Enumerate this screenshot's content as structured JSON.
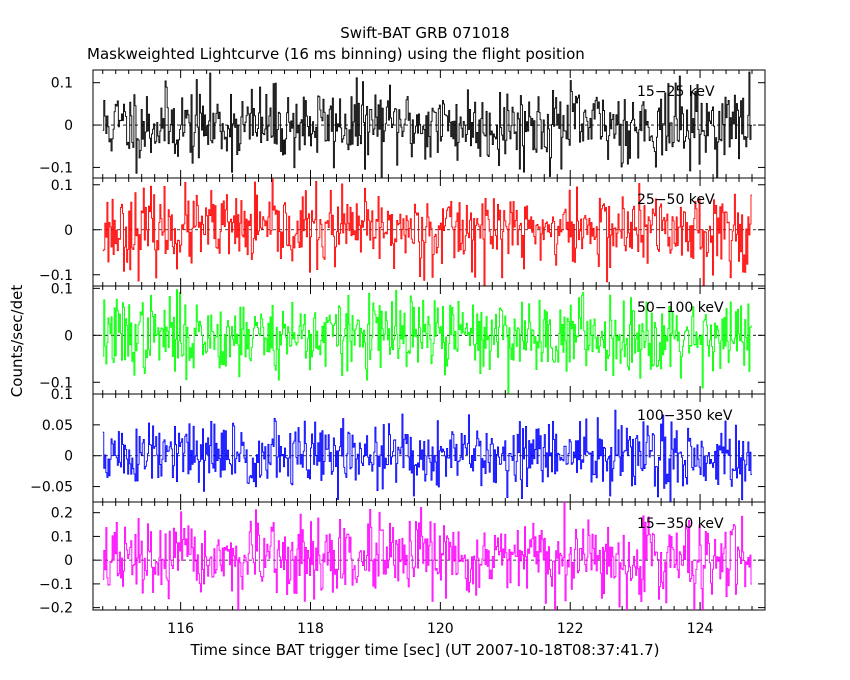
{
  "chart_data": {
    "type": "line",
    "title": "Swift-BAT GRB 071018",
    "subtitle": "Maskweighted Lightcurve (16 ms binning) using the flight position",
    "xlabel": "Time since BAT trigger time [sec] (UT 2007-10-18T08:37:41.7)",
    "ylabel": "Counts/sec/det",
    "xlim": [
      114.65,
      125.0
    ],
    "data_x_range": [
      114.8,
      124.8
    ],
    "bin_width_sec": 0.016,
    "xticks": [
      116,
      118,
      120,
      122,
      124
    ],
    "xtick_labels": [
      "116",
      "118",
      "120",
      "122",
      "124"
    ],
    "panels": [
      {
        "name": "15-25 keV",
        "label": "15−25 keV",
        "color": "#000000",
        "ylim": [
          -0.125,
          0.13
        ],
        "yticks": [
          -0.1,
          0,
          0.1
        ],
        "ytick_labels": [
          "−0.1",
          "0",
          "0.1"
        ],
        "noise_sigma": 0.045,
        "seed": 11
      },
      {
        "name": "25-50 keV",
        "label": "25−50 keV",
        "color": "#ff0000",
        "ylim": [
          -0.125,
          0.115
        ],
        "yticks": [
          -0.1,
          0,
          0.1
        ],
        "ytick_labels": [
          "−0.1",
          "0",
          "0.1"
        ],
        "noise_sigma": 0.042,
        "seed": 23
      },
      {
        "name": "50-100 keV",
        "label": "50−100 keV",
        "color": "#00ff00",
        "ylim": [
          -0.125,
          0.105
        ],
        "yticks": [
          -0.1,
          0,
          0.1
        ],
        "ytick_labels": [
          "−0.1",
          "0",
          "0.1"
        ],
        "noise_sigma": 0.04,
        "seed": 37
      },
      {
        "name": "100-350 keV",
        "label": "100−350 keV",
        "color": "#0000ff",
        "ylim": [
          -0.075,
          0.1
        ],
        "yticks": [
          -0.05,
          0,
          0.05,
          0.1
        ],
        "ytick_labels": [
          "−0.05",
          "0",
          "0.05",
          "0.1"
        ],
        "noise_sigma": 0.028,
        "seed": 51
      },
      {
        "name": "15-350 keV",
        "label": "15−350 keV",
        "color": "#ff00ff",
        "ylim": [
          -0.21,
          0.245
        ],
        "yticks": [
          -0.2,
          -0.1,
          0,
          0.1,
          0.2
        ],
        "ytick_labels": [
          "−0.2",
          "−0.1",
          "0",
          "0.1",
          "0.2"
        ],
        "noise_sigma": 0.08,
        "seed": 67
      }
    ]
  }
}
